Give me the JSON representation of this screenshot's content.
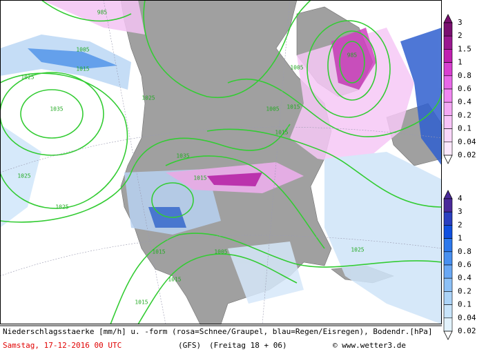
{
  "caption": {
    "description": "Niederschlagsstaerke [mm/h] u. -form (rosa=Schnee/Graupel, blau=Regen/Eisregen), Bodendr.[hPa]",
    "date": "Samstag, 17-12-2016  00 UTC",
    "model": "(GFS)",
    "run": "(Freitag 18 + 06)",
    "credit": "© www.wetter3.de"
  },
  "snow_legend": {
    "labels": [
      "3",
      "2",
      "1.5",
      "1",
      "0.8",
      "0.6",
      "0.4",
      "0.2",
      "0.1",
      "0.04",
      "0.02"
    ]
  },
  "rain_legend": {
    "labels": [
      "4",
      "3",
      "2",
      "1",
      "0.8",
      "0.6",
      "0.4",
      "0.2",
      "0.1",
      "0.04",
      "0.02"
    ]
  },
  "isobars": {
    "labels": [
      "985",
      "1005",
      "1015",
      "1025",
      "1035",
      "1025",
      "1015",
      "1005",
      "985",
      "1005",
      "1015",
      "1025",
      "1015",
      "1005",
      "1015",
      "1025",
      "1015",
      "1035",
      "1015",
      "1025"
    ]
  }
}
